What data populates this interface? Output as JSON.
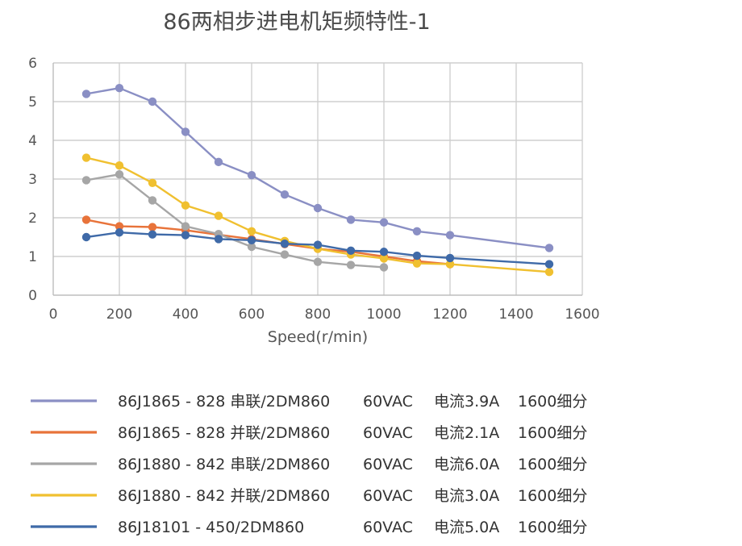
{
  "chart_data": {
    "type": "line",
    "title": "86两相步进电机矩频特性-1",
    "xlabel": "Speed(r/min)",
    "ylabel": "",
    "xlim": [
      0,
      1600
    ],
    "ylim": [
      0,
      6
    ],
    "x_ticks": [
      "0",
      "200",
      "400",
      "600",
      "800",
      "1000",
      "1200",
      "1400",
      "1600"
    ],
    "y_ticks": [
      "0",
      "1",
      "2",
      "3",
      "4",
      "5",
      "6"
    ],
    "grid": true,
    "legend_position": "bottom",
    "series": [
      {
        "color": "#8a8fc4",
        "legend": [
          "86J1865 - 828 串联/2DM860",
          "60VAC",
          "电流3.9A",
          "1600细分"
        ],
        "points": [
          [
            100,
            5.2
          ],
          [
            200,
            5.35
          ],
          [
            300,
            5.0
          ],
          [
            400,
            4.22
          ],
          [
            500,
            3.44
          ],
          [
            600,
            3.1
          ],
          [
            700,
            2.6
          ],
          [
            800,
            2.25
          ],
          [
            900,
            1.95
          ],
          [
            1000,
            1.88
          ],
          [
            1100,
            1.65
          ],
          [
            1200,
            1.55
          ],
          [
            1500,
            1.22
          ]
        ]
      },
      {
        "color": "#e8733a",
        "legend": [
          "86J1865 - 828 并联/2DM860",
          "60VAC",
          "电流2.1A",
          "1600细分"
        ],
        "points": [
          [
            100,
            1.95
          ],
          [
            200,
            1.78
          ],
          [
            300,
            1.76
          ],
          [
            400,
            1.68
          ],
          [
            500,
            1.56
          ],
          [
            600,
            1.45
          ],
          [
            700,
            1.32
          ],
          [
            800,
            1.2
          ],
          [
            900,
            1.12
          ],
          [
            1000,
            1.0
          ],
          [
            1100,
            0.88
          ],
          [
            1200,
            0.8
          ]
        ]
      },
      {
        "color": "#a6a6a6",
        "legend": [
          "86J1880 - 842 串联/2DM860",
          "60VAC",
          "电流6.0A",
          "1600细分"
        ],
        "points": [
          [
            100,
            2.97
          ],
          [
            200,
            3.12
          ],
          [
            300,
            2.45
          ],
          [
            400,
            1.78
          ],
          [
            500,
            1.58
          ],
          [
            600,
            1.25
          ],
          [
            700,
            1.05
          ],
          [
            800,
            0.86
          ],
          [
            900,
            0.78
          ],
          [
            1000,
            0.72
          ]
        ]
      },
      {
        "color": "#f0c030",
        "legend": [
          "86J1880 - 842 并联/2DM860",
          "60VAC",
          "电流3.0A",
          "1600细分"
        ],
        "points": [
          [
            100,
            3.55
          ],
          [
            200,
            3.35
          ],
          [
            300,
            2.9
          ],
          [
            400,
            2.32
          ],
          [
            500,
            2.05
          ],
          [
            600,
            1.65
          ],
          [
            700,
            1.4
          ],
          [
            800,
            1.2
          ],
          [
            900,
            1.05
          ],
          [
            1000,
            0.95
          ],
          [
            1100,
            0.82
          ],
          [
            1200,
            0.8
          ],
          [
            1500,
            0.6
          ]
        ]
      },
      {
        "color": "#3f6aa8",
        "legend": [
          "86J18101 - 450/2DM860",
          "60VAC",
          "电流5.0A",
          "1600细分"
        ],
        "points": [
          [
            100,
            1.5
          ],
          [
            200,
            1.62
          ],
          [
            300,
            1.57
          ],
          [
            400,
            1.55
          ],
          [
            500,
            1.45
          ],
          [
            600,
            1.42
          ],
          [
            700,
            1.33
          ],
          [
            800,
            1.3
          ],
          [
            900,
            1.15
          ],
          [
            1000,
            1.12
          ],
          [
            1100,
            1.02
          ],
          [
            1200,
            0.96
          ],
          [
            1500,
            0.8
          ]
        ]
      }
    ]
  }
}
